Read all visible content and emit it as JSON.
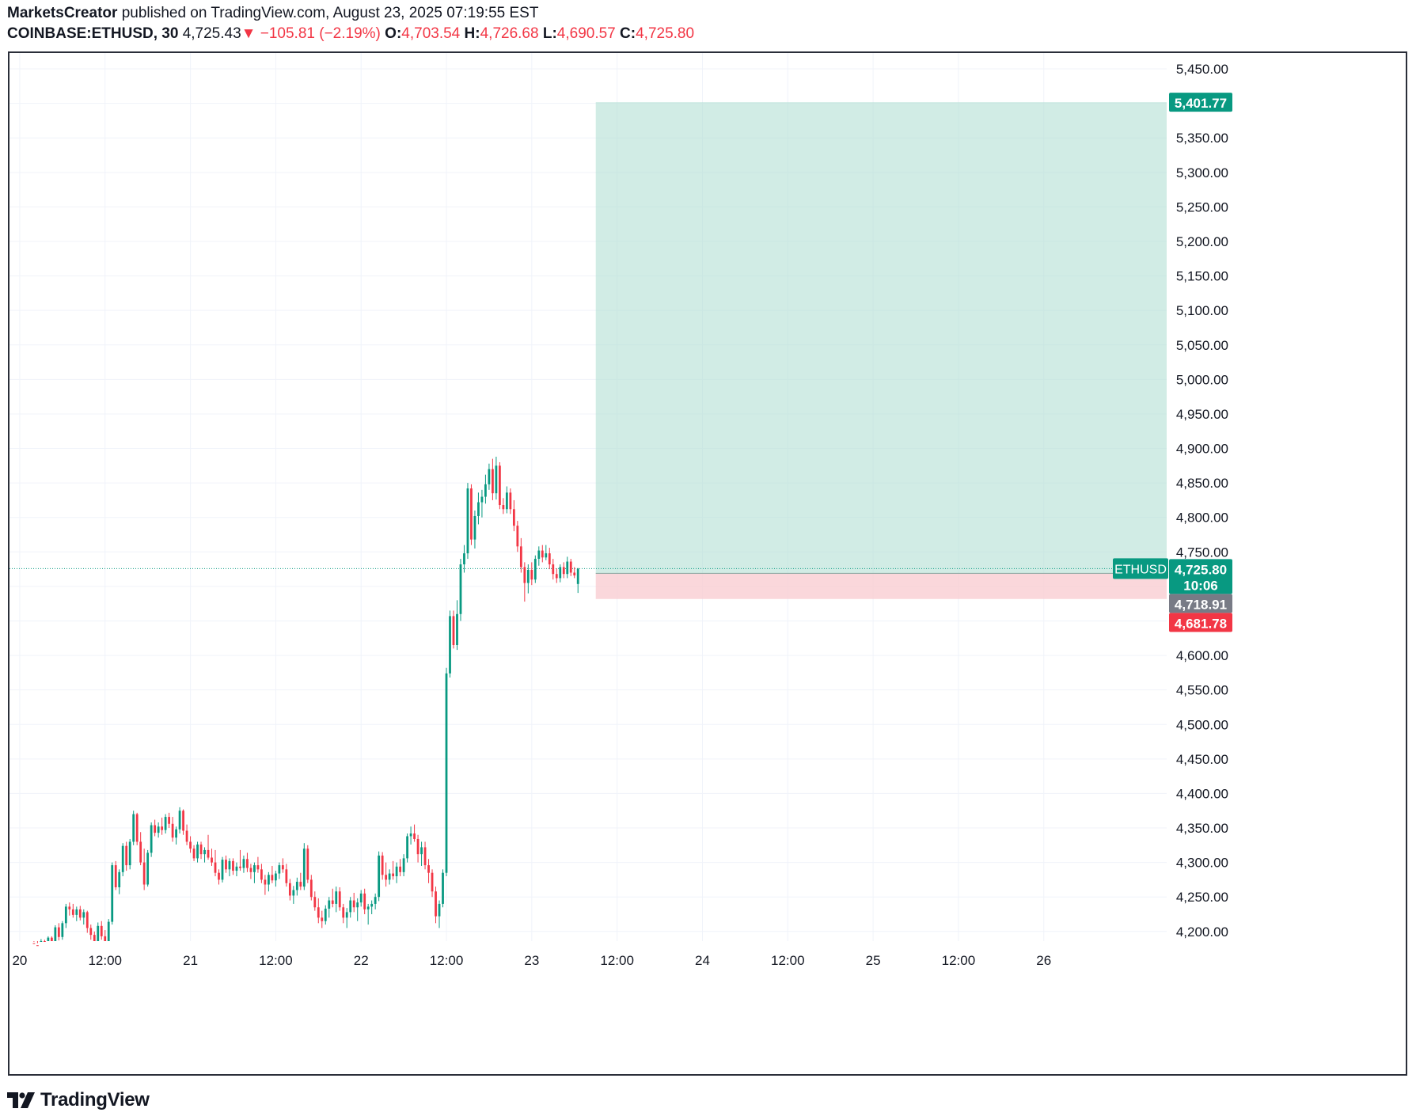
{
  "header": {
    "author": "MarketsCreator",
    "published_text": "published on TradingView.com, August 23, 2025 07:19:55 EST",
    "symbol_interval": "COINBASE:ETHUSD, 30",
    "last": "4,725.43",
    "change": "−105.81 (−2.19%)",
    "o_label": "O:",
    "o_value": "4,703.54",
    "h_label": "H:",
    "h_value": "4,726.68",
    "l_label": "L:",
    "l_value": "4,690.57",
    "c_label": "C:",
    "c_value": "4,725.80"
  },
  "brand": {
    "name": "TradingView"
  },
  "colors": {
    "up": "#089981",
    "down": "#f23645",
    "target_zone": "#b2dfd3",
    "stop_zone": "#f9cdd2",
    "grid": "#f0f3fa"
  },
  "chart_data": {
    "type": "candlestick",
    "symbol": "COINBASE:ETHUSD",
    "interval": "30",
    "x_ticks": [
      "20",
      "12:00",
      "21",
      "12:00",
      "22",
      "12:00",
      "23",
      "12:00",
      "24",
      "12:00",
      "25",
      "12:00",
      "26"
    ],
    "y_ticks": [
      "4,200.00",
      "4,250.00",
      "4,300.00",
      "4,350.00",
      "4,400.00",
      "4,450.00",
      "4,500.00",
      "4,550.00",
      "4,600.00",
      "4,650.00",
      "4,700.00",
      "4,750.00",
      "4,800.00",
      "4,850.00",
      "4,900.00",
      "4,950.00",
      "5,000.00",
      "5,050.00",
      "5,100.00",
      "5,150.00",
      "5,200.00",
      "5,250.00",
      "5,300.00",
      "5,350.00",
      "5,400.00",
      "5,450.00"
    ],
    "y_tick_values": [
      4200,
      4250,
      4300,
      4350,
      4400,
      4450,
      4500,
      4550,
      4600,
      4650,
      4700,
      4750,
      4800,
      4850,
      4900,
      4950,
      5000,
      5050,
      5100,
      5150,
      5200,
      5250,
      5300,
      5350,
      5400,
      5450
    ],
    "ylim": [
      4186,
      5473
    ],
    "xlim_days": [
      19.94,
      26.72
    ],
    "grid": true,
    "series_label": "ETHUSD",
    "price_labels": {
      "target": "5,401.77",
      "current": "4,725.80",
      "countdown": "10:06",
      "entry": "4,718.91",
      "stop": "4,681.78"
    },
    "position": {
      "type": "long",
      "entry": 4718.91,
      "target": 5401.77,
      "stop": 4681.78,
      "start_day": 23.375,
      "end_day": 26.25
    },
    "current_price": 4725.8,
    "start_day": 20.0833,
    "bar_days": 0.020833,
    "candles": [
      [
        4183,
        4185,
        4176,
        4180
      ],
      [
        4180,
        4183,
        4173,
        4178
      ],
      [
        4178,
        4189,
        4170,
        4186
      ],
      [
        4186,
        4188,
        4180,
        4184
      ],
      [
        4184,
        4193,
        4181,
        4191
      ],
      [
        4191,
        4193,
        4175,
        4180
      ],
      [
        4180,
        4209,
        4178,
        4206
      ],
      [
        4206,
        4212,
        4187,
        4192
      ],
      [
        4192,
        4215,
        4188,
        4212
      ],
      [
        4212,
        4240,
        4205,
        4236
      ],
      [
        4236,
        4242,
        4223,
        4232
      ],
      [
        4232,
        4240,
        4220,
        4224
      ],
      [
        4224,
        4236,
        4215,
        4232
      ],
      [
        4232,
        4237,
        4216,
        4220
      ],
      [
        4220,
        4232,
        4210,
        4228
      ],
      [
        4228,
        4230,
        4198,
        4205
      ],
      [
        4205,
        4210,
        4188,
        4195
      ],
      [
        4195,
        4200,
        4181,
        4186
      ],
      [
        4186,
        4213,
        4180,
        4208
      ],
      [
        4208,
        4215,
        4188,
        4193
      ],
      [
        4193,
        4202,
        4178,
        4184
      ],
      [
        4184,
        4218,
        4179,
        4214
      ],
      [
        4214,
        4300,
        4210,
        4296
      ],
      [
        4296,
        4302,
        4260,
        4264
      ],
      [
        4264,
        4290,
        4254,
        4286
      ],
      [
        4286,
        4328,
        4280,
        4324
      ],
      [
        4324,
        4330,
        4288,
        4296
      ],
      [
        4296,
        4334,
        4290,
        4330
      ],
      [
        4330,
        4375,
        4325,
        4370
      ],
      [
        4370,
        4372,
        4325,
        4330
      ],
      [
        4330,
        4344,
        4296,
        4300
      ],
      [
        4300,
        4320,
        4260,
        4268
      ],
      [
        4268,
        4318,
        4265,
        4314
      ],
      [
        4314,
        4358,
        4308,
        4354
      ],
      [
        4354,
        4362,
        4338,
        4343
      ],
      [
        4343,
        4358,
        4336,
        4352
      ],
      [
        4352,
        4365,
        4340,
        4347
      ],
      [
        4347,
        4370,
        4342,
        4366
      ],
      [
        4366,
        4372,
        4350,
        4356
      ],
      [
        4356,
        4366,
        4330,
        4336
      ],
      [
        4336,
        4352,
        4326,
        4348
      ],
      [
        4348,
        4380,
        4342,
        4375
      ],
      [
        4375,
        4377,
        4340,
        4346
      ],
      [
        4346,
        4355,
        4325,
        4330
      ],
      [
        4330,
        4338,
        4314,
        4320
      ],
      [
        4320,
        4325,
        4302,
        4306
      ],
      [
        4306,
        4330,
        4300,
        4326
      ],
      [
        4326,
        4330,
        4305,
        4312
      ],
      [
        4312,
        4322,
        4300,
        4318
      ],
      [
        4318,
        4340,
        4304,
        4307
      ],
      [
        4307,
        4320,
        4295,
        4300
      ],
      [
        4300,
        4318,
        4280,
        4285
      ],
      [
        4285,
        4290,
        4268,
        4275
      ],
      [
        4275,
        4308,
        4271,
        4304
      ],
      [
        4304,
        4310,
        4285,
        4290
      ],
      [
        4290,
        4306,
        4280,
        4302
      ],
      [
        4302,
        4306,
        4282,
        4288
      ],
      [
        4288,
        4300,
        4280,
        4294
      ],
      [
        4294,
        4318,
        4288,
        4292
      ],
      [
        4292,
        4310,
        4285,
        4305
      ],
      [
        4305,
        4314,
        4286,
        4292
      ],
      [
        4292,
        4298,
        4276,
        4286
      ],
      [
        4286,
        4300,
        4270,
        4296
      ],
      [
        4296,
        4308,
        4285,
        4290
      ],
      [
        4290,
        4298,
        4270,
        4275
      ],
      [
        4275,
        4282,
        4253,
        4268
      ],
      [
        4268,
        4286,
        4258,
        4282
      ],
      [
        4282,
        4295,
        4270,
        4274
      ],
      [
        4274,
        4288,
        4265,
        4284
      ],
      [
        4284,
        4300,
        4276,
        4296
      ],
      [
        4296,
        4306,
        4285,
        4290
      ],
      [
        4290,
        4298,
        4265,
        4270
      ],
      [
        4270,
        4276,
        4245,
        4252
      ],
      [
        4252,
        4266,
        4240,
        4260
      ],
      [
        4260,
        4278,
        4252,
        4272
      ],
      [
        4272,
        4285,
        4260,
        4265
      ],
      [
        4265,
        4328,
        4260,
        4320
      ],
      [
        4320,
        4325,
        4270,
        4275
      ],
      [
        4275,
        4282,
        4245,
        4250
      ],
      [
        4250,
        4258,
        4230,
        4235
      ],
      [
        4235,
        4248,
        4212,
        4220
      ],
      [
        4220,
        4230,
        4205,
        4215
      ],
      [
        4215,
        4238,
        4210,
        4233
      ],
      [
        4233,
        4250,
        4220,
        4245
      ],
      [
        4245,
        4262,
        4235,
        4240
      ],
      [
        4240,
        4265,
        4228,
        4258
      ],
      [
        4258,
        4264,
        4230,
        4235
      ],
      [
        4235,
        4240,
        4212,
        4220
      ],
      [
        4220,
        4234,
        4205,
        4228
      ],
      [
        4228,
        4250,
        4220,
        4245
      ],
      [
        4245,
        4256,
        4228,
        4235
      ],
      [
        4235,
        4248,
        4215,
        4242
      ],
      [
        4242,
        4260,
        4236,
        4255
      ],
      [
        4255,
        4262,
        4225,
        4232
      ],
      [
        4232,
        4240,
        4210,
        4236
      ],
      [
        4236,
        4245,
        4225,
        4240
      ],
      [
        4240,
        4255,
        4232,
        4250
      ],
      [
        4250,
        4316,
        4244,
        4310
      ],
      [
        4310,
        4315,
        4275,
        4282
      ],
      [
        4282,
        4300,
        4265,
        4275
      ],
      [
        4275,
        4290,
        4268,
        4284
      ],
      [
        4284,
        4302,
        4275,
        4280
      ],
      [
        4280,
        4300,
        4270,
        4294
      ],
      [
        4294,
        4305,
        4280,
        4286
      ],
      [
        4286,
        4312,
        4280,
        4306
      ],
      [
        4306,
        4342,
        4300,
        4338
      ],
      [
        4338,
        4352,
        4326,
        4342
      ],
      [
        4342,
        4355,
        4330,
        4334
      ],
      [
        4334,
        4340,
        4300,
        4312
      ],
      [
        4312,
        4330,
        4295,
        4322
      ],
      [
        4322,
        4330,
        4290,
        4296
      ],
      [
        4296,
        4305,
        4270,
        4285
      ],
      [
        4285,
        4290,
        4250,
        4258
      ],
      [
        4258,
        4265,
        4212,
        4222
      ],
      [
        4222,
        4245,
        4205,
        4240
      ],
      [
        4240,
        4290,
        4235,
        4285
      ],
      [
        4285,
        4582,
        4280,
        4574
      ],
      [
        4574,
        4665,
        4568,
        4657
      ],
      [
        4657,
        4665,
        4610,
        4615
      ],
      [
        4615,
        4680,
        4608,
        4660
      ],
      [
        4660,
        4740,
        4650,
        4732
      ],
      [
        4732,
        4760,
        4720,
        4748
      ],
      [
        4748,
        4850,
        4740,
        4842
      ],
      [
        4842,
        4848,
        4760,
        4768
      ],
      [
        4768,
        4810,
        4755,
        4802
      ],
      [
        4802,
        4836,
        4790,
        4822
      ],
      [
        4822,
        4840,
        4800,
        4830
      ],
      [
        4830,
        4862,
        4820,
        4848
      ],
      [
        4848,
        4878,
        4840,
        4870
      ],
      [
        4870,
        4885,
        4825,
        4835
      ],
      [
        4835,
        4888,
        4826,
        4875
      ],
      [
        4875,
        4880,
        4812,
        4818
      ],
      [
        4818,
        4828,
        4805,
        4812
      ],
      [
        4812,
        4845,
        4806,
        4836
      ],
      [
        4836,
        4842,
        4805,
        4812
      ],
      [
        4812,
        4825,
        4780,
        4788
      ],
      [
        4788,
        4795,
        4750,
        4758
      ],
      [
        4758,
        4770,
        4720,
        4728
      ],
      [
        4728,
        4735,
        4678,
        4705
      ],
      [
        4705,
        4732,
        4690,
        4724
      ],
      [
        4724,
        4735,
        4702,
        4710
      ],
      [
        4710,
        4745,
        4705,
        4740
      ],
      [
        4740,
        4758,
        4730,
        4752
      ],
      [
        4752,
        4760,
        4735,
        4742
      ],
      [
        4742,
        4760,
        4738,
        4748
      ],
      [
        4748,
        4756,
        4725,
        4732
      ],
      [
        4732,
        4740,
        4710,
        4718
      ],
      [
        4718,
        4726,
        4705,
        4712
      ],
      [
        4712,
        4732,
        4706,
        4728
      ],
      [
        4728,
        4735,
        4712,
        4718
      ],
      [
        4718,
        4743,
        4712,
        4736
      ],
      [
        4736,
        4740,
        4715,
        4720
      ],
      [
        4720,
        4728,
        4712,
        4716
      ],
      [
        4703.54,
        4726.68,
        4690.57,
        4725.8
      ]
    ]
  }
}
